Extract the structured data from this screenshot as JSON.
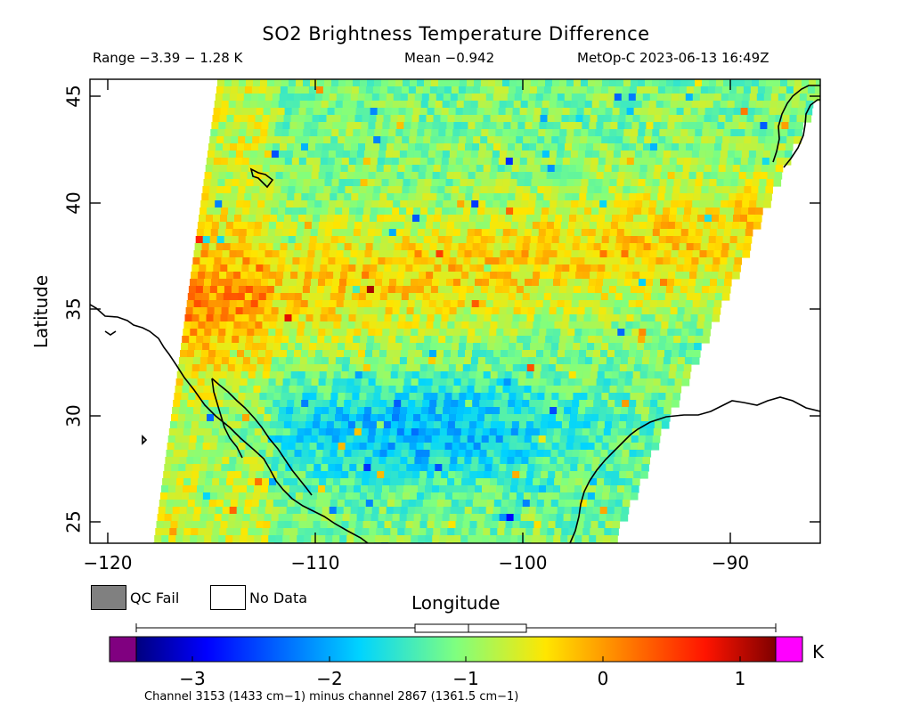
{
  "title": "SO2 Brightness Temperature Difference",
  "range_text": "Range −3.39 − 1.28 K",
  "mean_text": "Mean −0.942",
  "satellite_text": "MetOp-C 2023-06-13 16:49Z",
  "x_axis": {
    "label": "Longitude",
    "ticks": [
      "−120",
      "−110",
      "−100",
      "−90"
    ],
    "range": [
      -120.5,
      -85.5
    ]
  },
  "y_axis": {
    "label": "Latitude",
    "ticks": [
      "25",
      "30",
      "35",
      "40",
      "45"
    ],
    "range": [
      24,
      46
    ]
  },
  "legend": {
    "qc_fail": "QC Fail",
    "no_data": "No Data",
    "qc_fail_color": "#808080",
    "no_data_color": "#ffffff"
  },
  "colorbar": {
    "ticks": [
      "−3",
      "−2",
      "−1",
      "0",
      "1"
    ],
    "unit": "K",
    "range": [
      -3.39,
      1.28
    ],
    "mean": -0.942,
    "under_color": "#800080",
    "over_color": "#ff00ff"
  },
  "caption": "Channel 3153 (1433 cm−1) minus channel 2867 (1361.5 cm−1)"
}
